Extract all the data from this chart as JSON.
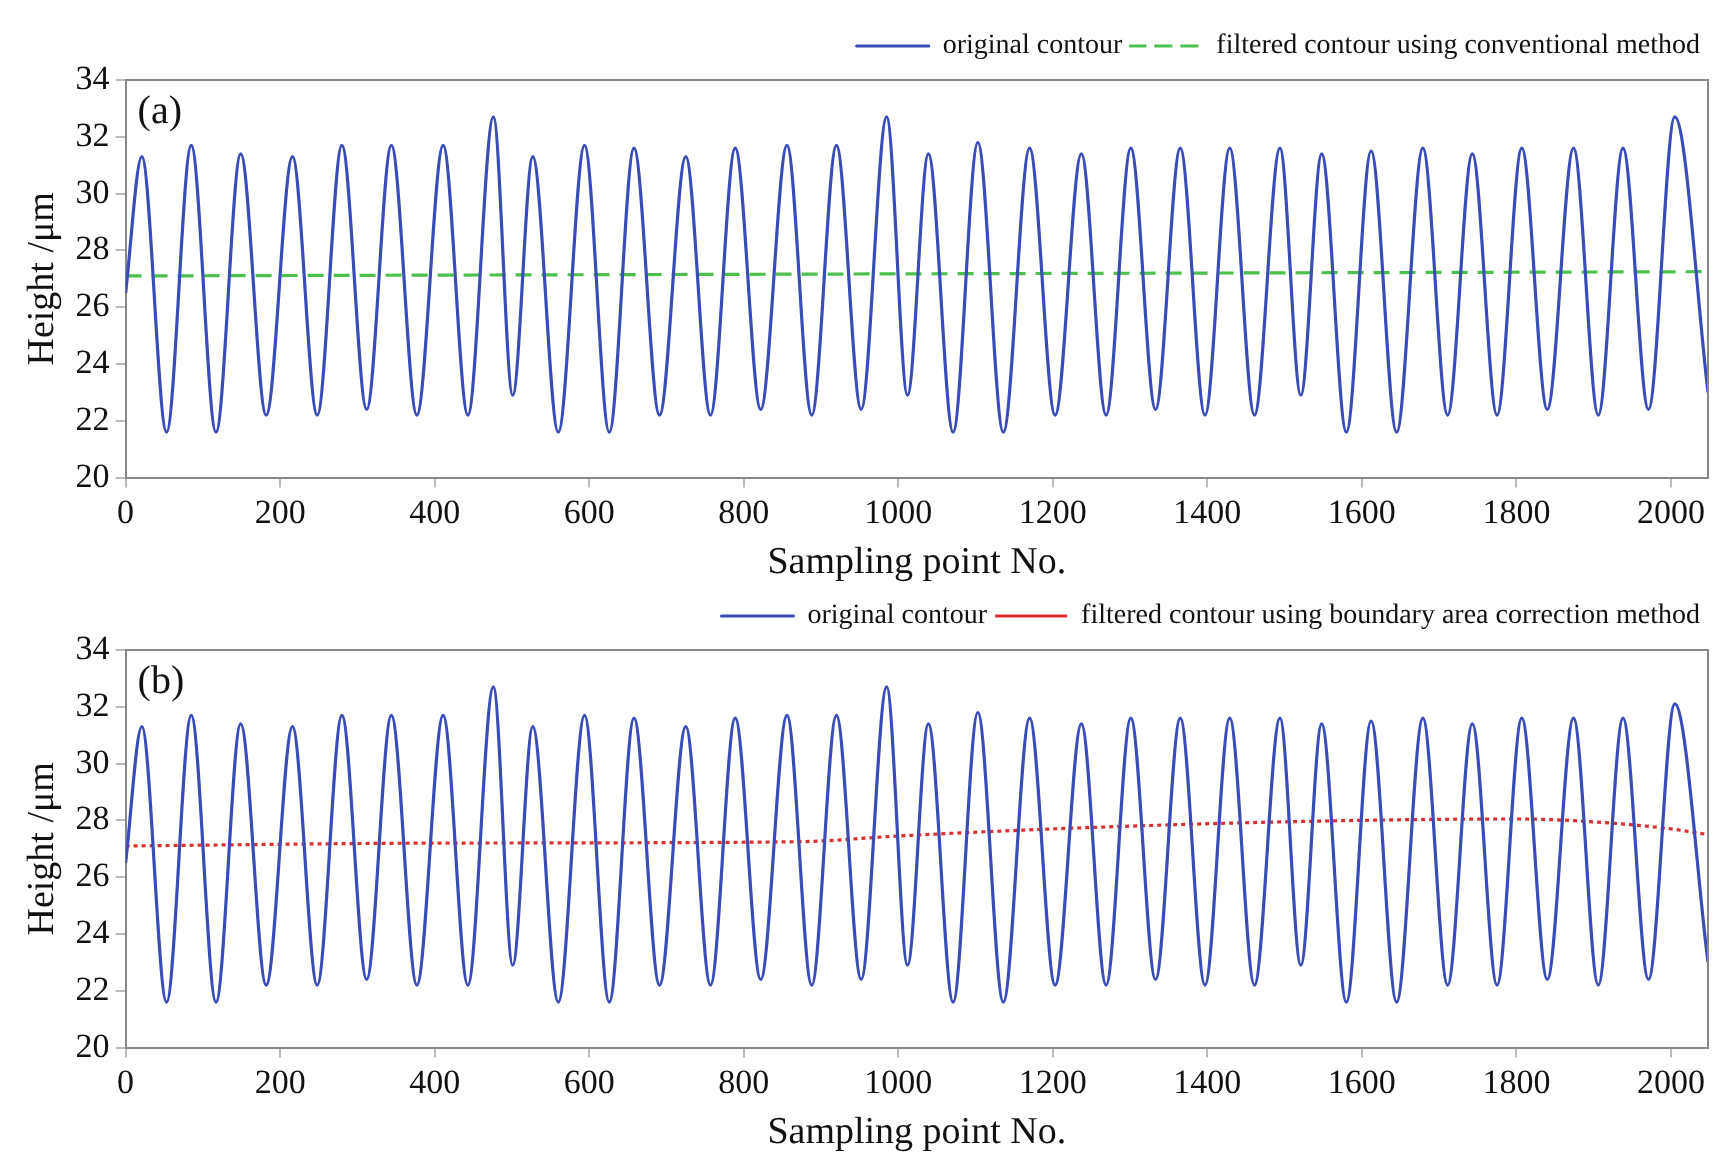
{
  "chart_data": [
    {
      "type": "line",
      "annotations": [
        "(a)"
      ],
      "xlabel": "Sampling point No.",
      "ylabel": "Height /μm",
      "xlim": [
        0,
        2048
      ],
      "xticks": [
        0,
        200,
        400,
        600,
        800,
        1000,
        1200,
        1400,
        1600,
        1800,
        2000
      ],
      "ylim": [
        20,
        34
      ],
      "yticks": [
        20,
        22,
        24,
        26,
        28,
        30,
        32,
        34
      ],
      "grid": false,
      "legend": "top right",
      "marker": "none",
      "series": [
        {
          "name": "original contour",
          "color": "#3a4cb8",
          "line_style": "solid",
          "x": [
            0,
            21,
            53,
            85,
            117,
            149,
            182,
            216,
            248,
            280,
            312,
            344,
            377,
            411,
            443,
            476,
            501,
            527,
            560,
            594,
            626,
            658,
            691,
            725,
            757,
            789,
            822,
            856,
            888,
            920,
            952,
            985,
            1012,
            1039,
            1071,
            1103,
            1136,
            1170,
            1203,
            1237,
            1269,
            1301,
            1333,
            1365,
            1397,
            1429,
            1461,
            1494,
            1521,
            1548,
            1580,
            1612,
            1645,
            1679,
            1711,
            1743,
            1775,
            1807,
            1840,
            1874,
            1906,
            1938,
            1971,
            2005,
            2048
          ],
          "values": [
            26.5,
            31.3,
            21.6,
            31.7,
            21.6,
            31.4,
            22.2,
            31.3,
            22.2,
            31.7,
            22.4,
            31.7,
            22.2,
            31.7,
            22.2,
            32.7,
            22.9,
            31.3,
            21.6,
            31.7,
            21.6,
            31.6,
            22.2,
            31.3,
            22.2,
            31.6,
            22.4,
            31.7,
            22.2,
            31.7,
            22.4,
            32.7,
            22.9,
            31.4,
            21.6,
            31.8,
            21.6,
            31.6,
            22.2,
            31.4,
            22.2,
            31.6,
            22.4,
            31.6,
            22.2,
            31.6,
            22.2,
            31.6,
            22.9,
            31.4,
            21.6,
            31.5,
            21.6,
            31.6,
            22.2,
            31.4,
            22.2,
            31.6,
            22.4,
            31.6,
            22.2,
            31.6,
            22.4,
            32.7,
            23.0
          ]
        },
        {
          "name": "filtered contour using conventional method",
          "color": "#4cc04c",
          "line_style": "dashed",
          "x": [
            0,
            2048
          ],
          "values": [
            27.1,
            27.25
          ]
        }
      ]
    },
    {
      "type": "line",
      "annotations": [
        "(b)"
      ],
      "xlabel": "Sampling point No.",
      "ylabel": "Height /μm",
      "xlim": [
        0,
        2048
      ],
      "xticks": [
        0,
        200,
        400,
        600,
        800,
        1000,
        1200,
        1400,
        1600,
        1800,
        2000
      ],
      "ylim": [
        20,
        34
      ],
      "yticks": [
        20,
        22,
        24,
        26,
        28,
        30,
        32,
        34
      ],
      "grid": false,
      "legend": "top right",
      "marker": "none",
      "series": [
        {
          "name": "original contour",
          "color": "#3a4cb8",
          "line_style": "solid",
          "x": [
            0,
            21,
            53,
            85,
            117,
            149,
            182,
            216,
            248,
            280,
            312,
            344,
            377,
            411,
            443,
            476,
            501,
            527,
            560,
            594,
            626,
            658,
            691,
            725,
            757,
            789,
            822,
            856,
            888,
            920,
            952,
            985,
            1012,
            1039,
            1071,
            1103,
            1136,
            1170,
            1203,
            1237,
            1269,
            1301,
            1333,
            1365,
            1397,
            1429,
            1461,
            1494,
            1521,
            1548,
            1580,
            1612,
            1645,
            1679,
            1711,
            1743,
            1775,
            1807,
            1840,
            1874,
            1906,
            1938,
            1971,
            2005,
            2048
          ],
          "values": [
            26.5,
            31.3,
            21.6,
            31.7,
            21.6,
            31.4,
            22.2,
            31.3,
            22.2,
            31.7,
            22.4,
            31.7,
            22.2,
            31.7,
            22.2,
            32.7,
            22.9,
            31.3,
            21.6,
            31.7,
            21.6,
            31.6,
            22.2,
            31.3,
            22.2,
            31.6,
            22.4,
            31.7,
            22.2,
            31.7,
            22.4,
            32.7,
            22.9,
            31.4,
            21.6,
            31.8,
            21.6,
            31.6,
            22.2,
            31.4,
            22.2,
            31.6,
            22.4,
            31.6,
            22.2,
            31.6,
            22.2,
            31.6,
            22.9,
            31.4,
            21.6,
            31.5,
            21.6,
            31.6,
            22.2,
            31.4,
            22.2,
            31.6,
            22.4,
            31.6,
            22.2,
            31.6,
            22.4,
            32.1,
            23.0
          ]
        },
        {
          "name": "filtered contour using boundary area correction method",
          "color": "#d83030",
          "line_style": "dotted",
          "x": [
            0,
            400,
            870,
            1000,
            1200,
            1500,
            1800,
            1900,
            2000,
            2048
          ],
          "values": [
            27.1,
            27.2,
            27.25,
            27.45,
            27.7,
            27.95,
            28.05,
            27.95,
            27.7,
            27.5
          ]
        }
      ]
    }
  ]
}
